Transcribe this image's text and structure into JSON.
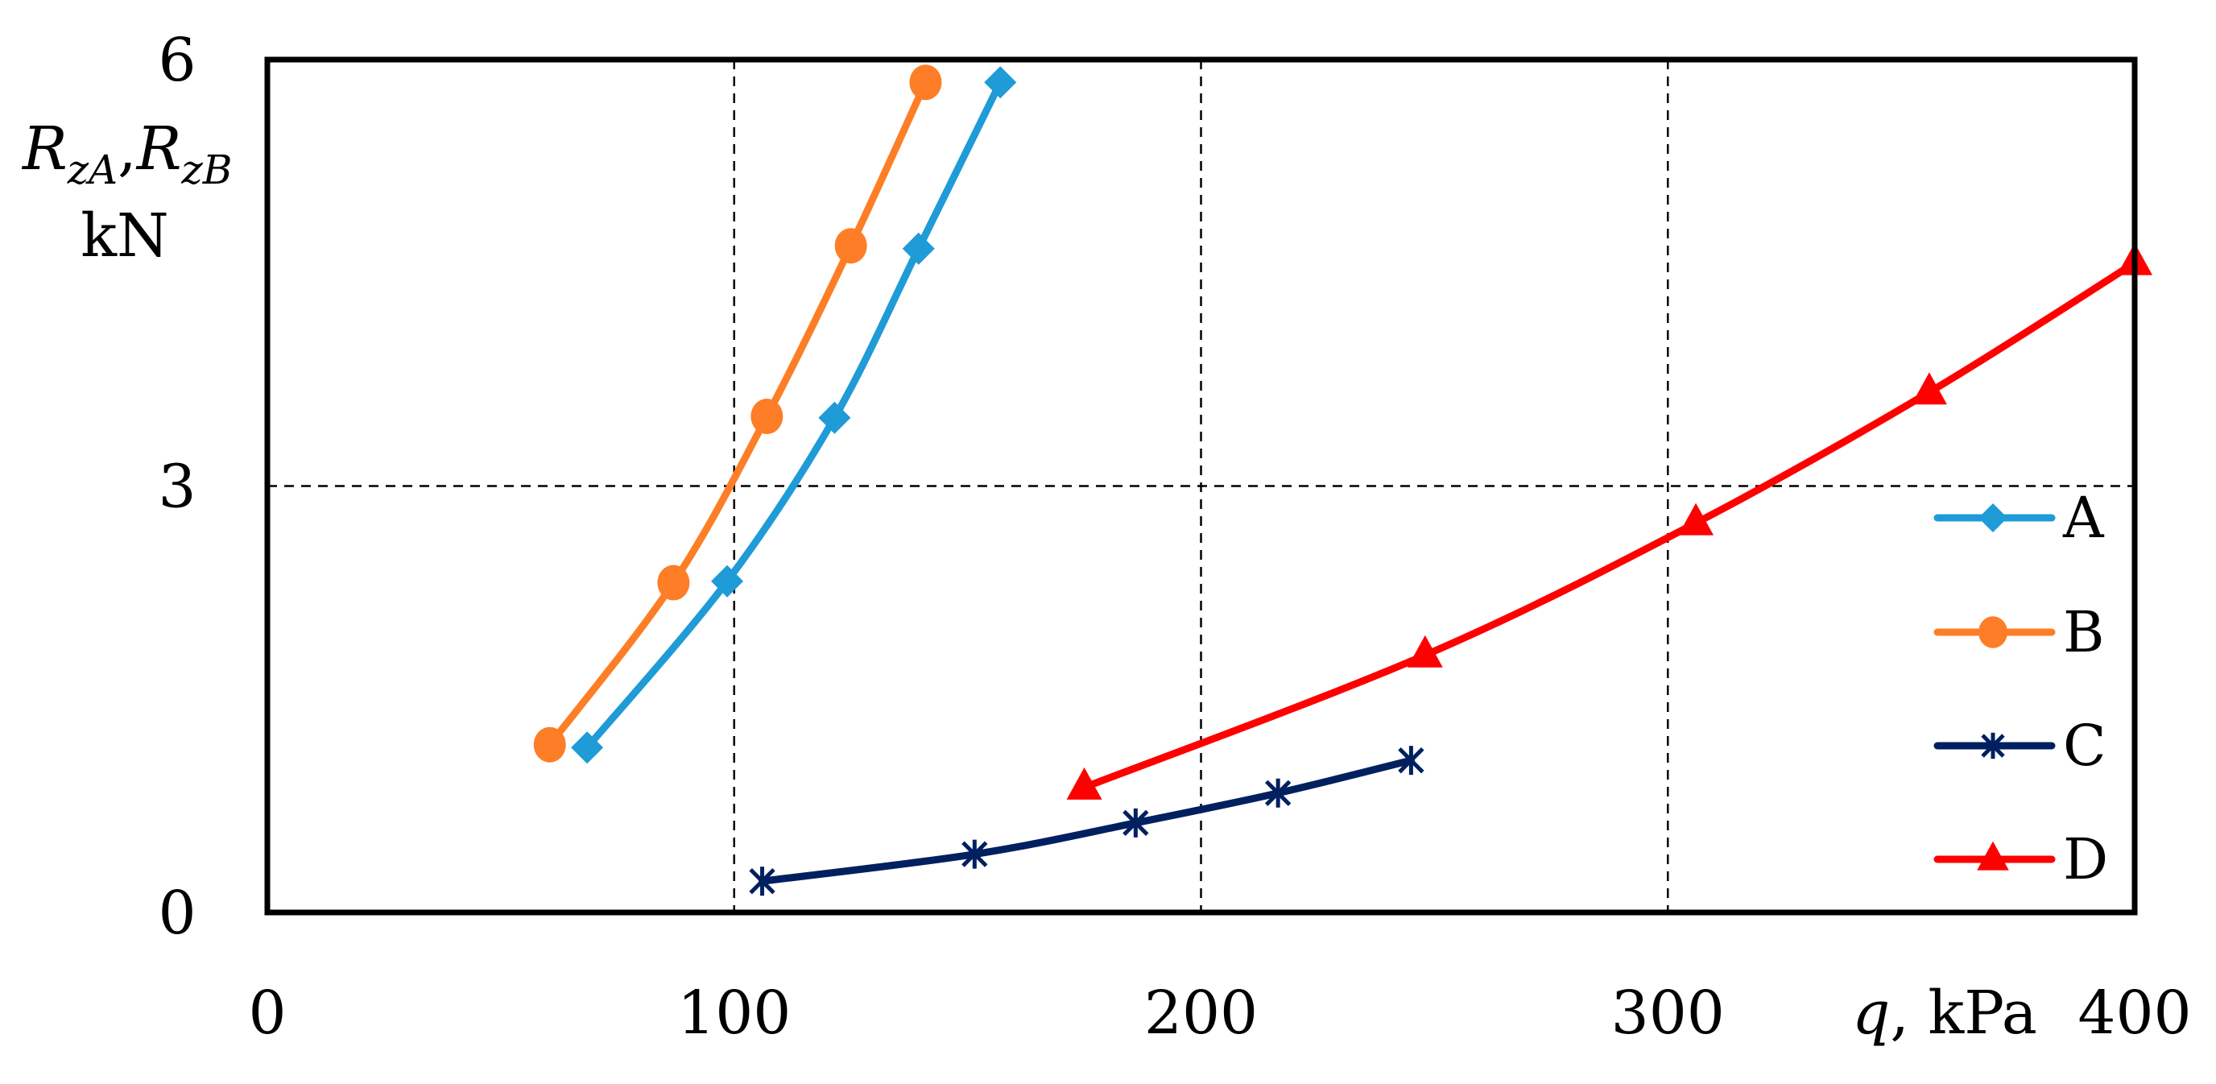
{
  "chart_data": {
    "type": "line",
    "title": "",
    "xlabel": "q, kPa",
    "xlabel_parts": {
      "var": "q",
      "rest": ", kPa"
    },
    "ylabel": "R_zA, R_zB kN",
    "ylabel_parts": {
      "r1": "R",
      "s1": "zA",
      "comma": ",",
      "r2": "R",
      "s2": "zB",
      "units": "kN"
    },
    "xlim": [
      0,
      400
    ],
    "ylim": [
      0,
      6
    ],
    "x_ticks": [
      0,
      100,
      200,
      300,
      400
    ],
    "x_tick_labels": [
      "0",
      "100",
      "200",
      "300",
      "400"
    ],
    "y_ticks": [
      0,
      3,
      6
    ],
    "y_tick_labels": [
      "0",
      "3",
      "6"
    ],
    "grid": {
      "x": [
        100,
        200,
        300
      ],
      "y": [
        3
      ],
      "style": "dashed",
      "color": "#000000"
    },
    "legend_position": "right-inside-lower",
    "series": [
      {
        "name": "A",
        "color": "#1f9bd7",
        "marker": "diamond",
        "x": [
          68.5,
          98.5,
          121.5,
          139.5,
          157
        ],
        "y": [
          1.16,
          2.33,
          3.48,
          4.67,
          5.84
        ]
      },
      {
        "name": "B",
        "color": "#fd7e26",
        "marker": "circle",
        "x": [
          60.5,
          87,
          107,
          125,
          141
        ],
        "y": [
          1.18,
          2.32,
          3.49,
          4.69,
          5.84
        ]
      },
      {
        "name": "C",
        "color": "#002060",
        "marker": "asterisk",
        "x": [
          106,
          151.5,
          186,
          216.5,
          245
        ],
        "y": [
          0.22,
          0.41,
          0.63,
          0.84,
          1.07
        ]
      },
      {
        "name": "D",
        "color": "#ff0000",
        "marker": "triangle",
        "x": [
          175,
          248,
          306,
          356,
          400
        ],
        "y": [
          0.88,
          1.81,
          2.74,
          3.66,
          4.57
        ]
      }
    ]
  },
  "axes": {
    "x_label_var": "q",
    "x_label_rest": ", kPa",
    "y_label_r1": "R",
    "y_label_s1": "zA",
    "y_label_comma": ",",
    "y_label_r2": "R",
    "y_label_s2": "zB",
    "y_label_units": "kN"
  },
  "legend": {
    "items": [
      {
        "label": "A"
      },
      {
        "label": "B"
      },
      {
        "label": "C"
      },
      {
        "label": "D"
      }
    ]
  }
}
